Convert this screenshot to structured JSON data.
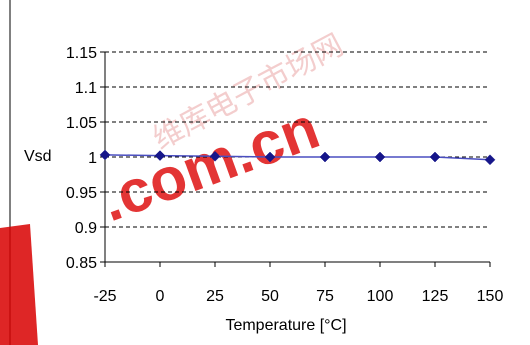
{
  "chart_data": {
    "type": "line",
    "title": "",
    "xlabel": "Temperature [°C]",
    "ylabel": "Vsd",
    "x": [
      -25,
      0,
      25,
      50,
      75,
      100,
      125,
      150
    ],
    "x_tick_labels": [
      "-25",
      "0",
      "25",
      "50",
      "75",
      "100",
      "125",
      "150"
    ],
    "y_tick_labels": [
      "1.15",
      "1.1",
      "1.05",
      "1",
      "0.95",
      "0.9",
      "0.85"
    ],
    "ylim": [
      0.85,
      1.15
    ],
    "grid": "horizontal dashed",
    "series": [
      {
        "values": [
          1.003,
          1.002,
          1.001,
          1.0,
          1.0,
          1.0,
          1.0,
          0.996
        ],
        "color": "#4a4ec0",
        "marker_color": "#16168a",
        "marker": "diamond"
      }
    ]
  },
  "watermark": {
    "text": ".com.cn",
    "chinese_text": "维库电子市场网",
    "color": "#e02020"
  }
}
